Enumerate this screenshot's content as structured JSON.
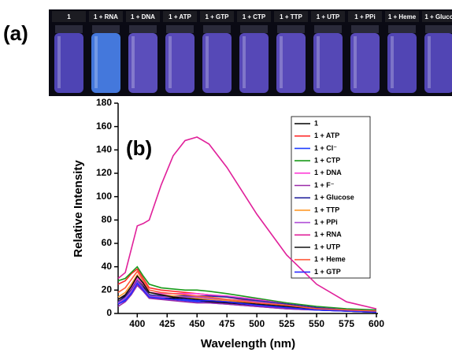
{
  "panel_a": {
    "label": "(a)",
    "vials": [
      {
        "label": "1",
        "color": "#5a4fd0"
      },
      {
        "label": "1 + RNA",
        "color": "#4f8cff"
      },
      {
        "label": "1 + DNA",
        "color": "#6a5ad8"
      },
      {
        "label": "1 + ATP",
        "color": "#6656d6"
      },
      {
        "label": "1 + GTP",
        "color": "#6455d4"
      },
      {
        "label": "1 + CTP",
        "color": "#6454d4"
      },
      {
        "label": "1 + TTP",
        "color": "#6656d6"
      },
      {
        "label": "1 + UTP",
        "color": "#6353d2"
      },
      {
        "label": "1 + PPi",
        "color": "#6656d6"
      },
      {
        "label": "1 + Heme",
        "color": "#5e50d0"
      },
      {
        "label": "1 + Gluco",
        "color": "#5e50d0"
      }
    ]
  },
  "chart_data": {
    "type": "line",
    "panel_label": "(b)",
    "x_label": "Wavelength (nm)",
    "y_label": "Relative Intensity",
    "xlim": [
      384,
      600
    ],
    "ylim": [
      0,
      180
    ],
    "xticks": [
      400,
      425,
      450,
      475,
      500,
      525,
      550,
      575,
      600
    ],
    "yticks": [
      0,
      20,
      40,
      60,
      80,
      100,
      120,
      140,
      160,
      180
    ],
    "x": [
      384,
      390,
      395,
      400,
      405,
      410,
      420,
      430,
      440,
      450,
      460,
      475,
      500,
      525,
      550,
      575,
      600
    ],
    "series": [
      {
        "name": "1",
        "color": "#000000",
        "values": [
          10,
          15,
          22,
          30,
          24,
          16,
          14,
          13,
          12,
          11,
          10,
          9,
          7,
          5,
          3,
          2,
          1
        ]
      },
      {
        "name": "1 + ATP",
        "color": "#ff2a2a",
        "values": [
          25,
          28,
          34,
          38,
          30,
          22,
          20,
          19,
          18,
          17,
          16,
          14,
          10,
          7,
          4,
          3,
          2
        ]
      },
      {
        "name": "1 + Cl⁻",
        "color": "#1f3fff",
        "values": [
          8,
          12,
          18,
          25,
          20,
          14,
          13,
          12,
          11,
          10,
          9,
          8,
          6,
          4,
          3,
          2,
          1
        ]
      },
      {
        "name": "1 + CTP",
        "color": "#1a9a1a",
        "values": [
          28,
          30,
          35,
          40,
          32,
          25,
          22,
          21,
          20,
          20,
          19,
          17,
          13,
          9,
          6,
          4,
          3
        ]
      },
      {
        "name": "1 + DNA",
        "color": "#ff3fd8",
        "values": [
          12,
          16,
          22,
          30,
          25,
          18,
          17,
          17,
          17,
          17,
          16,
          15,
          12,
          8,
          5,
          3,
          2
        ]
      },
      {
        "name": "1 + F⁻",
        "color": "#9a2aa8",
        "values": [
          6,
          10,
          16,
          24,
          19,
          13,
          12,
          11,
          10,
          9,
          9,
          8,
          6,
          4,
          3,
          2,
          1
        ]
      },
      {
        "name": "1 + Glucose",
        "color": "#2a2aa0",
        "values": [
          10,
          14,
          20,
          28,
          22,
          16,
          15,
          15,
          15,
          15,
          15,
          14,
          11,
          8,
          5,
          3,
          2
        ]
      },
      {
        "name": "1 + TTP",
        "color": "#ff9a2a",
        "values": [
          14,
          18,
          25,
          33,
          26,
          18,
          16,
          15,
          14,
          13,
          12,
          11,
          8,
          6,
          4,
          2,
          1
        ]
      },
      {
        "name": "1 + PPi",
        "color": "#b04fd8",
        "values": [
          9,
          13,
          19,
          27,
          21,
          15,
          14,
          14,
          14,
          14,
          13,
          12,
          10,
          7,
          4,
          3,
          2
        ]
      },
      {
        "name": "1 + RNA",
        "color": "#e0209a",
        "values": [
          30,
          35,
          55,
          75,
          77,
          80,
          110,
          135,
          148,
          151,
          145,
          125,
          85,
          50,
          25,
          10,
          4
        ]
      },
      {
        "name": "1 + UTP",
        "color": "#111111",
        "values": [
          12,
          16,
          23,
          32,
          26,
          18,
          16,
          14,
          13,
          12,
          11,
          10,
          8,
          6,
          4,
          2,
          1
        ]
      },
      {
        "name": "1 + Heme",
        "color": "#ff5a3a",
        "values": [
          18,
          22,
          29,
          36,
          28,
          20,
          18,
          17,
          16,
          15,
          14,
          12,
          9,
          7,
          4,
          3,
          2
        ]
      },
      {
        "name": "1 + GTP",
        "color": "#2a2aff",
        "values": [
          8,
          11,
          17,
          26,
          20,
          14,
          13,
          12,
          12,
          11,
          11,
          10,
          7,
          5,
          3,
          2,
          1
        ]
      }
    ]
  }
}
